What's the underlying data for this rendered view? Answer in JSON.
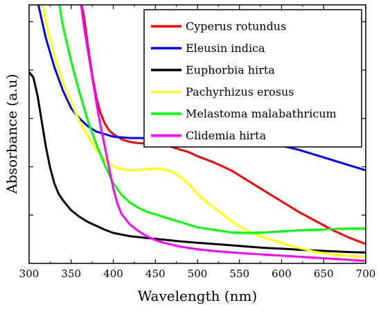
{
  "chart_data": {
    "type": "line",
    "title": "",
    "xlabel": "Wavelength (nm)",
    "ylabel": "Absorbance (a.u)",
    "xlim": [
      300,
      700
    ],
    "ylim": [
      0,
      1
    ],
    "x_ticks": [
      "300",
      "350",
      "400",
      "450",
      "500",
      "550",
      "600",
      "650",
      "700"
    ],
    "y_ticks_labeled": false,
    "grid": false,
    "legend_position": "top-right",
    "series": [
      {
        "name": "Cyperus rotundus",
        "color": "#ff0000",
        "points": [
          [
            361,
            1.02
          ],
          [
            365,
            0.96
          ],
          [
            370,
            0.84
          ],
          [
            375,
            0.73
          ],
          [
            380,
            0.64
          ],
          [
            385,
            0.58
          ],
          [
            390,
            0.54
          ],
          [
            395,
            0.515
          ],
          [
            400,
            0.5
          ],
          [
            410,
            0.48
          ],
          [
            420,
            0.47
          ],
          [
            430,
            0.465
          ],
          [
            440,
            0.465
          ],
          [
            450,
            0.465
          ],
          [
            460,
            0.46
          ],
          [
            470,
            0.45
          ],
          [
            480,
            0.44
          ],
          [
            490,
            0.43
          ],
          [
            500,
            0.415
          ],
          [
            520,
            0.39
          ],
          [
            540,
            0.36
          ],
          [
            560,
            0.32
          ],
          [
            580,
            0.28
          ],
          [
            600,
            0.24
          ],
          [
            620,
            0.2
          ],
          [
            640,
            0.165
          ],
          [
            660,
            0.13
          ],
          [
            680,
            0.1
          ],
          [
            700,
            0.075
          ]
        ]
      },
      {
        "name": "Eleusin indica",
        "color": "#0000ff",
        "points": [
          [
            311,
            1.0
          ],
          [
            320,
            0.87
          ],
          [
            330,
            0.76
          ],
          [
            340,
            0.67
          ],
          [
            350,
            0.6
          ],
          [
            360,
            0.56
          ],
          [
            370,
            0.53
          ],
          [
            380,
            0.51
          ],
          [
            390,
            0.5
          ],
          [
            400,
            0.49
          ],
          [
            420,
            0.485
          ],
          [
            440,
            0.485
          ],
          [
            460,
            0.49
          ],
          [
            480,
            0.495
          ],
          [
            500,
            0.497
          ],
          [
            520,
            0.495
          ],
          [
            540,
            0.49
          ],
          [
            560,
            0.48
          ],
          [
            580,
            0.47
          ],
          [
            600,
            0.455
          ],
          [
            620,
            0.44
          ],
          [
            640,
            0.42
          ],
          [
            660,
            0.4
          ],
          [
            680,
            0.38
          ],
          [
            700,
            0.36
          ]
        ]
      },
      {
        "name": "Euphorbia hirta",
        "color": "#000000",
        "points": [
          [
            300,
            0.74
          ],
          [
            305,
            0.72
          ],
          [
            310,
            0.65
          ],
          [
            315,
            0.55
          ],
          [
            320,
            0.45
          ],
          [
            325,
            0.37
          ],
          [
            330,
            0.31
          ],
          [
            335,
            0.27
          ],
          [
            340,
            0.245
          ],
          [
            345,
            0.225
          ],
          [
            350,
            0.205
          ],
          [
            360,
            0.18
          ],
          [
            370,
            0.16
          ],
          [
            380,
            0.145
          ],
          [
            390,
            0.13
          ],
          [
            400,
            0.118
          ],
          [
            420,
            0.105
          ],
          [
            440,
            0.098
          ],
          [
            460,
            0.092
          ],
          [
            480,
            0.085
          ],
          [
            500,
            0.08
          ],
          [
            520,
            0.075
          ],
          [
            540,
            0.07
          ],
          [
            560,
            0.065
          ],
          [
            580,
            0.06
          ],
          [
            600,
            0.057
          ],
          [
            620,
            0.053
          ],
          [
            640,
            0.05
          ],
          [
            660,
            0.047
          ],
          [
            680,
            0.044
          ],
          [
            700,
            0.042
          ]
        ]
      },
      {
        "name": "Pachyrhizus erosus",
        "color": "#ffff00",
        "points": [
          [
            315,
            1.02
          ],
          [
            320,
            0.93
          ],
          [
            330,
            0.8
          ],
          [
            340,
            0.7
          ],
          [
            350,
            0.62
          ],
          [
            360,
            0.55
          ],
          [
            370,
            0.49
          ],
          [
            380,
            0.44
          ],
          [
            390,
            0.4
          ],
          [
            400,
            0.375
          ],
          [
            410,
            0.365
          ],
          [
            420,
            0.362
          ],
          [
            430,
            0.362
          ],
          [
            440,
            0.365
          ],
          [
            450,
            0.368
          ],
          [
            460,
            0.365
          ],
          [
            470,
            0.355
          ],
          [
            480,
            0.335
          ],
          [
            490,
            0.305
          ],
          [
            500,
            0.27
          ],
          [
            510,
            0.24
          ],
          [
            520,
            0.215
          ],
          [
            530,
            0.19
          ],
          [
            540,
            0.165
          ],
          [
            550,
            0.145
          ],
          [
            560,
            0.125
          ],
          [
            580,
            0.1
          ],
          [
            600,
            0.08
          ],
          [
            620,
            0.06
          ],
          [
            640,
            0.045
          ],
          [
            660,
            0.035
          ],
          [
            680,
            0.03
          ],
          [
            700,
            0.025
          ]
        ]
      },
      {
        "name": "Melastoma malabathricum",
        "color": "#00ff00",
        "points": [
          [
            335,
            1.02
          ],
          [
            340,
            0.92
          ],
          [
            350,
            0.78
          ],
          [
            360,
            0.66
          ],
          [
            370,
            0.55
          ],
          [
            380,
            0.46
          ],
          [
            390,
            0.38
          ],
          [
            400,
            0.31
          ],
          [
            410,
            0.265
          ],
          [
            420,
            0.235
          ],
          [
            430,
            0.215
          ],
          [
            440,
            0.2
          ],
          [
            450,
            0.19
          ],
          [
            460,
            0.18
          ],
          [
            470,
            0.17
          ],
          [
            480,
            0.16
          ],
          [
            490,
            0.15
          ],
          [
            500,
            0.14
          ],
          [
            520,
            0.13
          ],
          [
            540,
            0.12
          ],
          [
            560,
            0.118
          ],
          [
            580,
            0.12
          ],
          [
            600,
            0.124
          ],
          [
            620,
            0.128
          ],
          [
            640,
            0.13
          ],
          [
            660,
            0.133
          ],
          [
            680,
            0.135
          ],
          [
            700,
            0.135
          ]
        ]
      },
      {
        "name": "Clidemia hirta",
        "color": "#ff00ff",
        "points": [
          [
            361,
            1.02
          ],
          [
            365,
            0.92
          ],
          [
            370,
            0.82
          ],
          [
            375,
            0.72
          ],
          [
            380,
            0.62
          ],
          [
            385,
            0.53
          ],
          [
            390,
            0.45
          ],
          [
            395,
            0.37
          ],
          [
            400,
            0.29
          ],
          [
            405,
            0.23
          ],
          [
            410,
            0.19
          ],
          [
            420,
            0.15
          ],
          [
            430,
            0.125
          ],
          [
            440,
            0.105
          ],
          [
            450,
            0.09
          ],
          [
            460,
            0.08
          ],
          [
            480,
            0.065
          ],
          [
            500,
            0.055
          ],
          [
            520,
            0.048
          ],
          [
            540,
            0.043
          ],
          [
            560,
            0.038
          ],
          [
            580,
            0.034
          ],
          [
            600,
            0.03
          ],
          [
            620,
            0.026
          ],
          [
            640,
            0.022
          ],
          [
            660,
            0.018
          ],
          [
            680,
            0.014
          ],
          [
            700,
            0.01
          ]
        ]
      }
    ]
  }
}
